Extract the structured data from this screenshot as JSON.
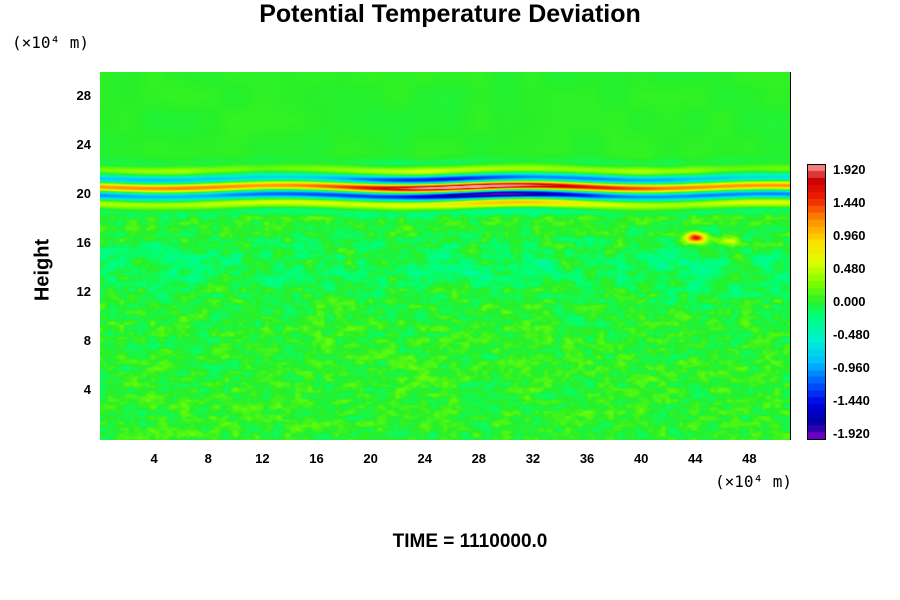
{
  "chart_data": {
    "type": "heatmap",
    "title": "Potential Temperature Deviation",
    "ylabel": "Height",
    "y_unit": "(×10⁴ m)",
    "x_unit": "(×10⁴ m)",
    "xlim": [
      0,
      51
    ],
    "ylim": [
      0,
      30
    ],
    "x_ticks": [
      "4",
      "8",
      "12",
      "16",
      "20",
      "24",
      "28",
      "32",
      "36",
      "40",
      "44",
      "48"
    ],
    "y_ticks": [
      "4",
      "8",
      "12",
      "16",
      "20",
      "24",
      "28"
    ],
    "colorbar": {
      "range": [
        -1.92,
        1.92
      ],
      "tick_labels": [
        "1.920",
        "1.440",
        "0.960",
        "0.480",
        "0.000",
        "-0.480",
        "-0.960",
        "-1.440",
        "-1.920"
      ],
      "colors": [
        "#8800cc",
        "#0000c0",
        "#0050ff",
        "#00c8ff",
        "#00ffa0",
        "#33ee33",
        "#aaff00",
        "#ffff00",
        "#ffbb00",
        "#ff5500",
        "#dd0000",
        "#ff9999"
      ]
    },
    "features": [
      {
        "description_values": "band",
        "y_center": 20.5,
        "amplitude": 1.92
      },
      {
        "description_values": "patch",
        "x": 44,
        "y": 16.5,
        "value": 1.6
      }
    ],
    "grid": false,
    "time_label": "TIME = 1110000.0"
  }
}
